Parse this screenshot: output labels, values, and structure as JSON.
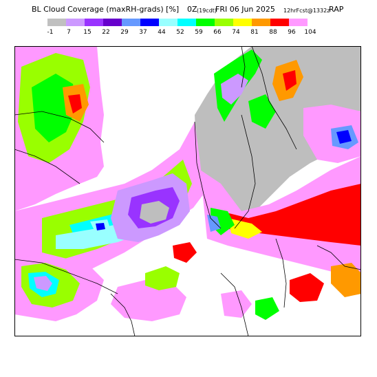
{
  "header": {
    "title": "BL Cloud Coverage (maxRH-grads) [%]",
    "valid_hour": "0Z",
    "local_time": "(19cdt)",
    "valid_date": "FRI 06 Jun 2025",
    "forecast_info": "12hrFcst@1332z",
    "model": "RAP"
  },
  "legend": {
    "labels": [
      "-1",
      "7",
      "15",
      "22",
      "29",
      "37",
      "44",
      "52",
      "59",
      "66",
      "74",
      "81",
      "88",
      "96",
      "104"
    ],
    "colors": [
      "#c0c0c0",
      "#cc99ff",
      "#9933ff",
      "#6600cc",
      "#6699ff",
      "#0000ff",
      "#99ffff",
      "#00ffff",
      "#00ff00",
      "#99ff00",
      "#ffff00",
      "#ff9900",
      "#ff0000",
      "#ff99ff"
    ]
  },
  "map": {
    "region": "Great Lakes / Upper Midwest",
    "background_color": "#ffffff",
    "land_no_data_color": "#bebebe",
    "boundary_color": "#000000"
  }
}
